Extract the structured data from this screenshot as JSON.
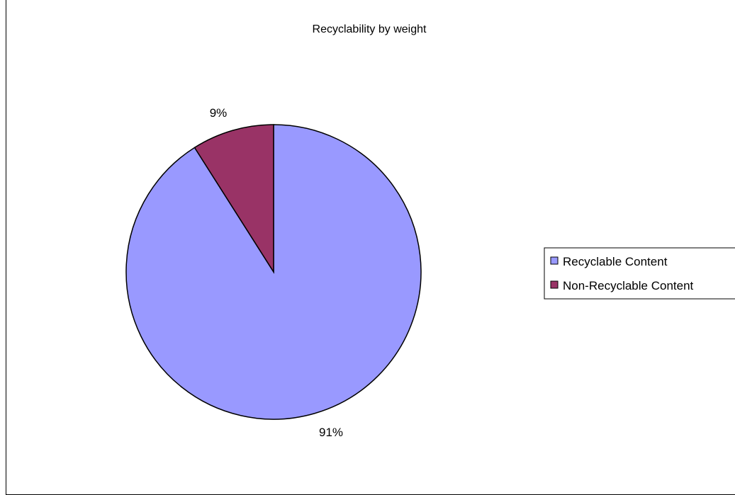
{
  "chart_data": {
    "type": "pie",
    "title": "Recyclability by weight",
    "categories": [
      "Recyclable Content",
      "Non-Recyclable Content"
    ],
    "values": [
      91,
      9
    ],
    "data_labels": [
      "91%",
      "9%"
    ],
    "colors": [
      "#9999FF",
      "#993366"
    ],
    "start": "12 o'clock",
    "direction": "clockwise",
    "legend_position": "right"
  }
}
